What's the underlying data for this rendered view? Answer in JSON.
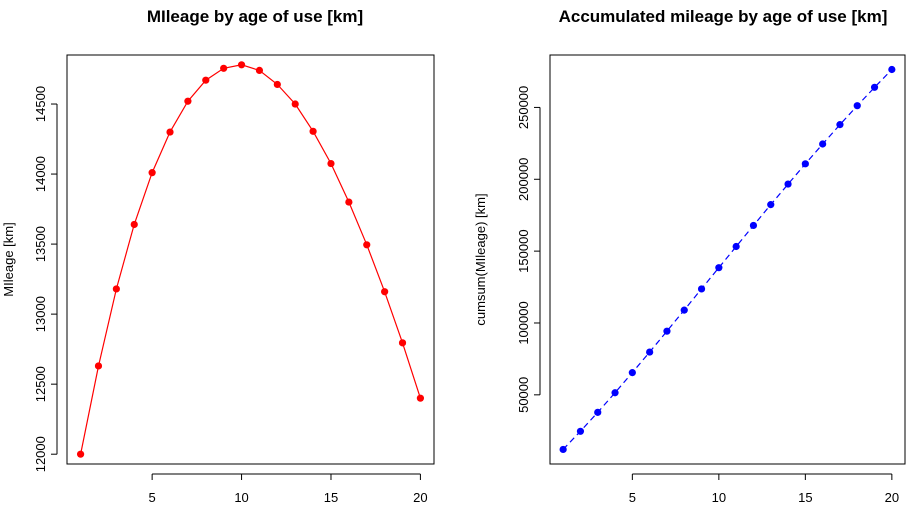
{
  "chart_data": [
    {
      "type": "line",
      "title": "MIleage by age of use [km]",
      "xlabel": "",
      "ylabel": "MIleage  [km]",
      "xlim": [
        0.24,
        20.76
      ],
      "ylim": [
        11930,
        14850
      ],
      "x_ticks": [
        5,
        10,
        15,
        20
      ],
      "y_ticks": [
        12000,
        12500,
        13000,
        13500,
        14000,
        14500
      ],
      "color": "#ff0000",
      "line_style": "solid",
      "series": [
        {
          "x": [
            1,
            2,
            3,
            4,
            5,
            6,
            7,
            8,
            9,
            10,
            11,
            12,
            13,
            14,
            15,
            16,
            17,
            18,
            19,
            20
          ],
          "values": [
            12000,
            12630,
            13180,
            13640,
            14010,
            14300,
            14520,
            14670,
            14755,
            14780,
            14740,
            14640,
            14500,
            14305,
            14075,
            13800,
            13495,
            13160,
            12795,
            12400
          ]
        }
      ]
    },
    {
      "type": "line",
      "title": "Accumulated mileage by age of use [km]",
      "xlabel": "",
      "ylabel": "cumsum(MIleage)  [km]",
      "xlim": [
        0.24,
        20.76
      ],
      "ylim": [
        1872,
        286478
      ],
      "x_ticks": [
        5,
        10,
        15,
        20
      ],
      "y_ticks": [
        50000,
        100000,
        150000,
        200000,
        250000
      ],
      "color": "#0000ff",
      "line_style": "dashed",
      "series": [
        {
          "x": [
            1,
            2,
            3,
            4,
            5,
            6,
            7,
            8,
            9,
            10,
            11,
            12,
            13,
            14,
            15,
            16,
            17,
            18,
            19,
            20
          ],
          "values": [
            12000,
            24630,
            37810,
            51450,
            65460,
            79760,
            94280,
            108950,
            123705,
            138485,
            153225,
            167865,
            182365,
            196670,
            210745,
            224545,
            238040,
            251200,
            263995,
            276395
          ]
        }
      ]
    }
  ]
}
